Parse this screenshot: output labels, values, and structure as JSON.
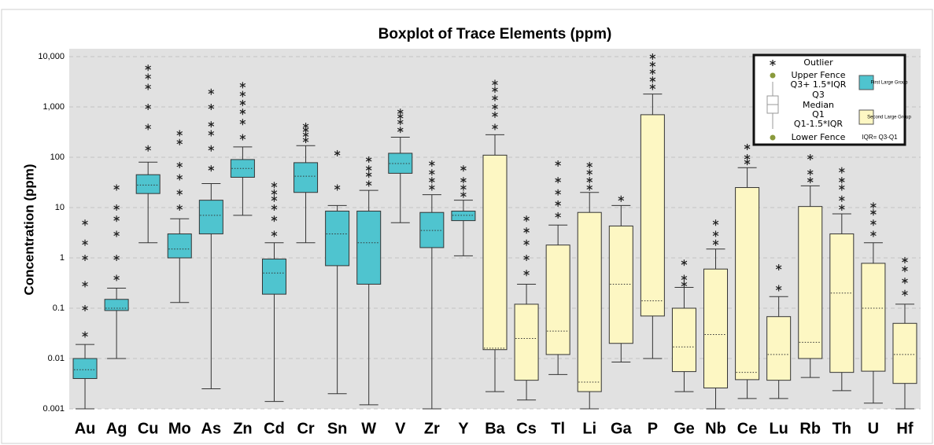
{
  "chart_data": {
    "type": "boxplot",
    "title": "Boxplot of Trace Elements (ppm)",
    "y_label": "Concentration (ppm)",
    "log_y": true,
    "grid": true,
    "ylim": [
      0.001,
      10000
    ],
    "yticks": [
      0.001,
      0.01,
      0.1,
      1,
      10,
      100,
      {
        "value": 1000,
        "label": "1,000"
      },
      {
        "value": 10000,
        "label": "10,000"
      }
    ],
    "legend_position": "upper right",
    "legend_items": [
      "Outlier",
      "Upper Fence",
      "Q3+ 1.5*IQR",
      "Q3",
      "Median",
      "Q1",
      "Q1-1.5*IQR",
      "Lower Fence"
    ],
    "legend_note": "IQR= Q3-Q1",
    "series": [
      {
        "name": "First Large Group",
        "color": "#4fc4cf",
        "categories": [
          "Au",
          "Ag",
          "Cu",
          "Mo",
          "As",
          "Zn",
          "Cd",
          "Cr",
          "Sn",
          "W",
          "V",
          "Zr",
          "Y"
        ],
        "low": [
          0.001,
          0.01,
          2,
          0.13,
          0.0025,
          7,
          0.0014,
          2,
          0.002,
          0.0012,
          5,
          0.001,
          1.1
        ],
        "q1": [
          0.004,
          0.09,
          19,
          1,
          3,
          40,
          0.19,
          20,
          0.7,
          0.3,
          48,
          1.6,
          5.5
        ],
        "median": [
          0.006,
          0.1,
          28,
          1.5,
          7,
          60,
          0.5,
          42,
          3,
          2,
          75,
          3.5,
          7
        ],
        "q3": [
          0.01,
          0.15,
          45,
          3,
          14,
          90,
          0.95,
          78,
          8.5,
          8.5,
          120,
          8,
          8.5
        ],
        "high": [
          0.019,
          0.25,
          80,
          6,
          30,
          160,
          2,
          170,
          11,
          22,
          250,
          18,
          14
        ],
        "outliers": [
          [
            0.03,
            0.1,
            0.3,
            1,
            2,
            5
          ],
          [
            0.4,
            1,
            3,
            6,
            10,
            25
          ],
          [
            150,
            400,
            1000,
            2500,
            4000,
            6000
          ],
          [
            10,
            20,
            40,
            70,
            200,
            300
          ],
          [
            60,
            150,
            300,
            450,
            1000,
            2000
          ],
          [
            250,
            500,
            800,
            1200,
            1800,
            2700
          ],
          [
            3,
            6,
            10,
            15,
            20,
            28
          ],
          [
            220,
            280,
            350,
            420
          ],
          [
            25,
            120
          ],
          [
            30,
            45,
            60,
            90
          ],
          [
            350,
            500,
            650,
            800
          ],
          [
            25,
            35,
            50,
            75
          ],
          [
            18,
            25,
            35,
            60
          ]
        ]
      },
      {
        "name": "Second Large Group",
        "color": "#fdf7c3",
        "categories": [
          "Ba",
          "Cs",
          "Tl",
          "Li",
          "Ga",
          "P",
          "Ge",
          "Nb",
          "Ce",
          "Lu",
          "Rb",
          "Th",
          "U",
          "Hf"
        ],
        "low": [
          0.0022,
          0.0015,
          0.0048,
          0.001,
          0.0085,
          0.01,
          0.0022,
          0.001,
          0.0016,
          0.0016,
          0.0042,
          0.0023,
          0.0013,
          0.001
        ],
        "q1": [
          0.015,
          0.0037,
          0.012,
          0.0022,
          0.02,
          0.07,
          0.0055,
          0.0026,
          0.0038,
          0.0037,
          0.01,
          0.0053,
          0.0056,
          0.0032
        ],
        "median": [
          0.016,
          0.025,
          0.035,
          0.0034,
          0.3,
          0.14,
          0.017,
          0.03,
          0.0053,
          0.012,
          0.021,
          0.2,
          0.1,
          0.012
        ],
        "q3": [
          110,
          0.12,
          1.8,
          8,
          4.3,
          700,
          0.1,
          0.6,
          25,
          0.068,
          10.5,
          3,
          0.78,
          0.05
        ],
        "high": [
          280,
          0.3,
          4.5,
          20,
          11,
          1800,
          0.26,
          1.5,
          62,
          0.17,
          27,
          7.5,
          2,
          0.12
        ],
        "outliers": [
          [
            400,
            700,
            1000,
            1500,
            2200,
            3000
          ],
          [
            0.5,
            1,
            2,
            3.5,
            6
          ],
          [
            7,
            12,
            20,
            35,
            75
          ],
          [
            25,
            35,
            50,
            70
          ],
          [
            15
          ],
          [
            2500,
            3500,
            5000,
            7000,
            10000
          ],
          [
            0.3,
            0.4,
            0.8
          ],
          [
            2,
            3,
            5
          ],
          [
            80,
            100,
            160
          ],
          [
            0.25,
            0.65
          ],
          [
            35,
            50,
            100
          ],
          [
            10,
            15,
            25,
            35,
            55
          ],
          [
            3,
            5,
            8,
            11
          ],
          [
            0.2,
            0.35,
            0.6,
            0.9
          ]
        ]
      }
    ]
  }
}
